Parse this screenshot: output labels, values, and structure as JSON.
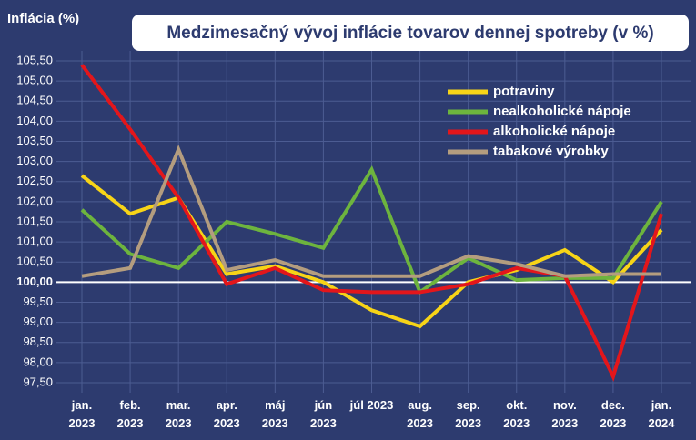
{
  "chart_data": {
    "type": "line",
    "title": "Medzimesačný vývoj inflácie tovarov dennej spotreby (v %)",
    "y_label": "Inflácia (%)",
    "categories": [
      "jan. 2023",
      "feb. 2023",
      "mar. 2023",
      "apr. 2023",
      "máj 2023",
      "jún 2023",
      "júl 2023",
      "aug. 2023",
      "sep. 2023",
      "okt. 2023",
      "nov. 2023",
      "dec. 2023",
      "jan. 2024"
    ],
    "series": [
      {
        "name": "potraviny",
        "color": "#f7d417",
        "values": [
          102.65,
          101.7,
          102.1,
          100.2,
          100.4,
          100.0,
          99.3,
          98.9,
          100.0,
          100.3,
          100.8,
          100.0,
          101.3
        ]
      },
      {
        "name": "nealkoholické nápoje",
        "color": "#6db43e",
        "values": [
          101.8,
          100.7,
          100.35,
          101.5,
          101.2,
          100.85,
          102.8,
          99.75,
          100.6,
          100.05,
          100.1,
          100.1,
          102.0
        ]
      },
      {
        "name": "alkoholické nápoje",
        "color": "#e3161b",
        "values": [
          105.4,
          103.8,
          102.1,
          99.95,
          100.35,
          99.8,
          99.75,
          99.75,
          99.95,
          100.35,
          100.15,
          97.65,
          101.7
        ]
      },
      {
        "name": "tabakové výrobky",
        "color": "#b49d7f",
        "values": [
          100.15,
          100.35,
          103.3,
          100.3,
          100.55,
          100.15,
          100.15,
          100.15,
          100.65,
          100.45,
          100.15,
          100.2,
          100.2
        ]
      }
    ],
    "ylim": [
      97.25,
      105.75
    ],
    "yticks": [
      {
        "value": 97.5,
        "label": "97,50"
      },
      {
        "value": 98,
        "label": "98,00"
      },
      {
        "value": 98.5,
        "label": "98,50"
      },
      {
        "value": 99,
        "label": "99,00"
      },
      {
        "value": 99.5,
        "label": "99,50"
      },
      {
        "value": 100,
        "label": "100,00"
      },
      {
        "value": 100.5,
        "label": "100,50"
      },
      {
        "value": 101,
        "label": "101,00"
      },
      {
        "value": 101.5,
        "label": "101,50"
      },
      {
        "value": 102,
        "label": "102,00"
      },
      {
        "value": 102.5,
        "label": "102,50"
      },
      {
        "value": 103,
        "label": "103,00"
      },
      {
        "value": 103.5,
        "label": "103,50"
      },
      {
        "value": 104,
        "label": "104,00"
      },
      {
        "value": 104.5,
        "label": "104,50"
      },
      {
        "value": 105,
        "label": "105,00"
      },
      {
        "value": 105.5,
        "label": "105,50"
      }
    ],
    "grid": true,
    "legend": "upper right"
  }
}
